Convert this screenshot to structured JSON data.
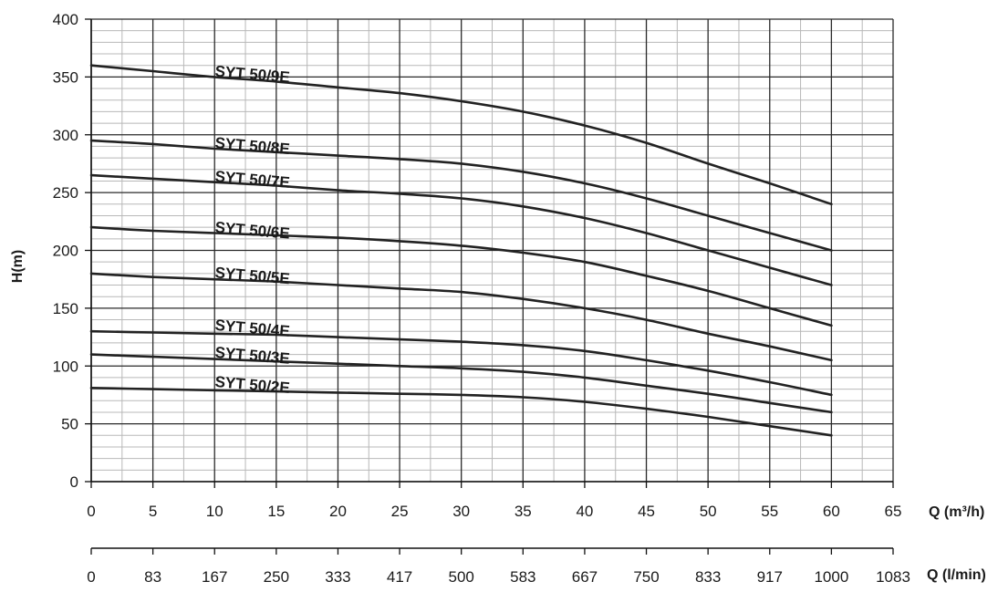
{
  "chart_data": {
    "type": "line",
    "xlabel": "Q (m³/h)",
    "x2label": "Q (l/min)",
    "ylabel": "H(m)",
    "xlim": [
      0,
      65
    ],
    "ylim": [
      0,
      400
    ],
    "grid": true,
    "x_ticks": [
      0,
      5,
      10,
      15,
      20,
      25,
      30,
      35,
      40,
      45,
      50,
      55,
      60,
      65
    ],
    "x_tick_labels": [
      "0",
      "5",
      "10",
      "15",
      "20",
      "25",
      "30",
      "35",
      "40",
      "45",
      "50",
      "55",
      "60",
      "65"
    ],
    "x2_tick_labels": [
      "0",
      "83",
      "167",
      "250",
      "333",
      "417",
      "500",
      "583",
      "667",
      "750",
      "833",
      "917",
      "1000",
      "1083"
    ],
    "y_ticks": [
      0,
      50,
      100,
      150,
      200,
      250,
      300,
      350,
      400
    ],
    "y_tick_labels": [
      "0",
      "50",
      "100",
      "150",
      "200",
      "250",
      "300",
      "350",
      "400"
    ],
    "x": [
      0,
      5,
      10,
      15,
      20,
      25,
      30,
      35,
      40,
      45,
      50,
      55,
      60
    ],
    "series": [
      {
        "name": "SYT 50/9E",
        "values": [
          360,
          355,
          350,
          346,
          341,
          336,
          329,
          320,
          308,
          293,
          275,
          258,
          240
        ]
      },
      {
        "name": "SYT 50/8E",
        "values": [
          295,
          292,
          288,
          285,
          282,
          279,
          275,
          268,
          258,
          245,
          230,
          215,
          200
        ]
      },
      {
        "name": "SYT 50/7E",
        "values": [
          265,
          262,
          259,
          256,
          252,
          249,
          245,
          238,
          228,
          215,
          200,
          185,
          170
        ]
      },
      {
        "name": "SYT 50/6E",
        "values": [
          220,
          217,
          215,
          213,
          211,
          208,
          204,
          198,
          190,
          178,
          165,
          150,
          135
        ]
      },
      {
        "name": "SYT 50/5E",
        "values": [
          180,
          177,
          175,
          173,
          170,
          167,
          164,
          158,
          150,
          140,
          128,
          117,
          105
        ]
      },
      {
        "name": "SYT 50/4E",
        "values": [
          130,
          129,
          128,
          127,
          125,
          123,
          121,
          118,
          113,
          105,
          96,
          86,
          75
        ]
      },
      {
        "name": "SYT 50/3E",
        "values": [
          110,
          108,
          106,
          104,
          102,
          100,
          98,
          95,
          90,
          83,
          76,
          68,
          60
        ]
      },
      {
        "name": "SYT 50/2E",
        "values": [
          81,
          80,
          79,
          78,
          77,
          76,
          75,
          73,
          69,
          63,
          56,
          48,
          40
        ]
      }
    ]
  }
}
